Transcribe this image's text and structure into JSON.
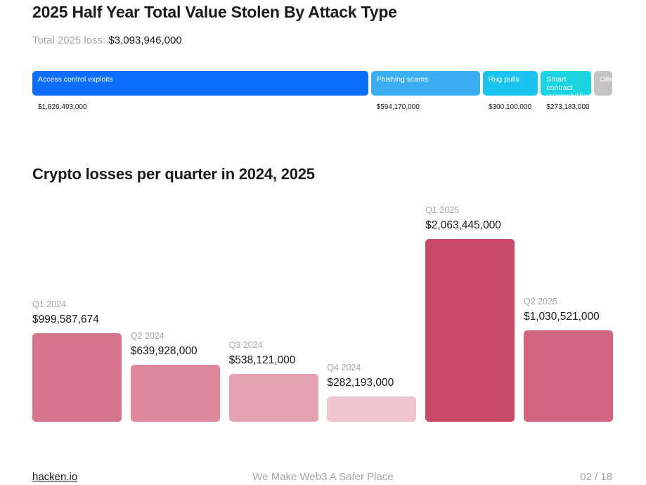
{
  "header": {
    "title": "2025 Half Year Total Value Stolen By Attack Type",
    "total_label": "Total 2025 loss:",
    "total_value": "$3,093,946,000"
  },
  "attack_types": [
    {
      "label": "Access control exploits",
      "value": "$1,826,493,000",
      "color": "#0d6efd"
    },
    {
      "label": "Phishing scams",
      "value": "$594,170,000",
      "color": "#3aaef0"
    },
    {
      "label": "Rug pulls",
      "value": "$300,100,000",
      "color": "#1bc3ee"
    },
    {
      "label": "Smart contract vulnerabilities",
      "value": "$273,183,000",
      "color": "#1cd3e0"
    },
    {
      "label": "Other",
      "value": "",
      "color": "#c4c4c4"
    }
  ],
  "section2": {
    "title": "Crypto losses per quarter in 2024, 2025"
  },
  "chart_data": [
    {
      "type": "bar",
      "title": "2025 Half Year Total Value Stolen By Attack Type",
      "orientation": "horizontal-stacked",
      "categories": [
        "Access control exploits",
        "Phishing scams",
        "Rug pulls",
        "Smart contract vulnerabilities",
        "Other"
      ],
      "values": [
        1826493000,
        594170000,
        300100000,
        273183000,
        100000000
      ],
      "total": 3093946000
    },
    {
      "type": "bar",
      "title": "Crypto losses per quarter in 2024, 2025",
      "categories": [
        "Q1 2024",
        "Q2 2024",
        "Q3 2024",
        "Q4 2024",
        "Q1 2025",
        "Q2 2025"
      ],
      "values": [
        999587674,
        639928000,
        538121000,
        282193000,
        2063445000,
        1030521000
      ],
      "value_labels": [
        "$999,587,674",
        "$639,928,000",
        "$538,121,000",
        "$282,193,000",
        "$2,063,445,000",
        "$1,030,521,000"
      ],
      "colors": [
        "#d7758d",
        "#dd889d",
        "#e5a3b0",
        "#efc5cf",
        "#c94a67",
        "#d26580"
      ],
      "ylim": [
        0,
        2063445000
      ]
    }
  ],
  "footer": {
    "site": "hacken.io",
    "tagline": "We Make Web3 A Safer Place",
    "page": "02 / 18"
  }
}
